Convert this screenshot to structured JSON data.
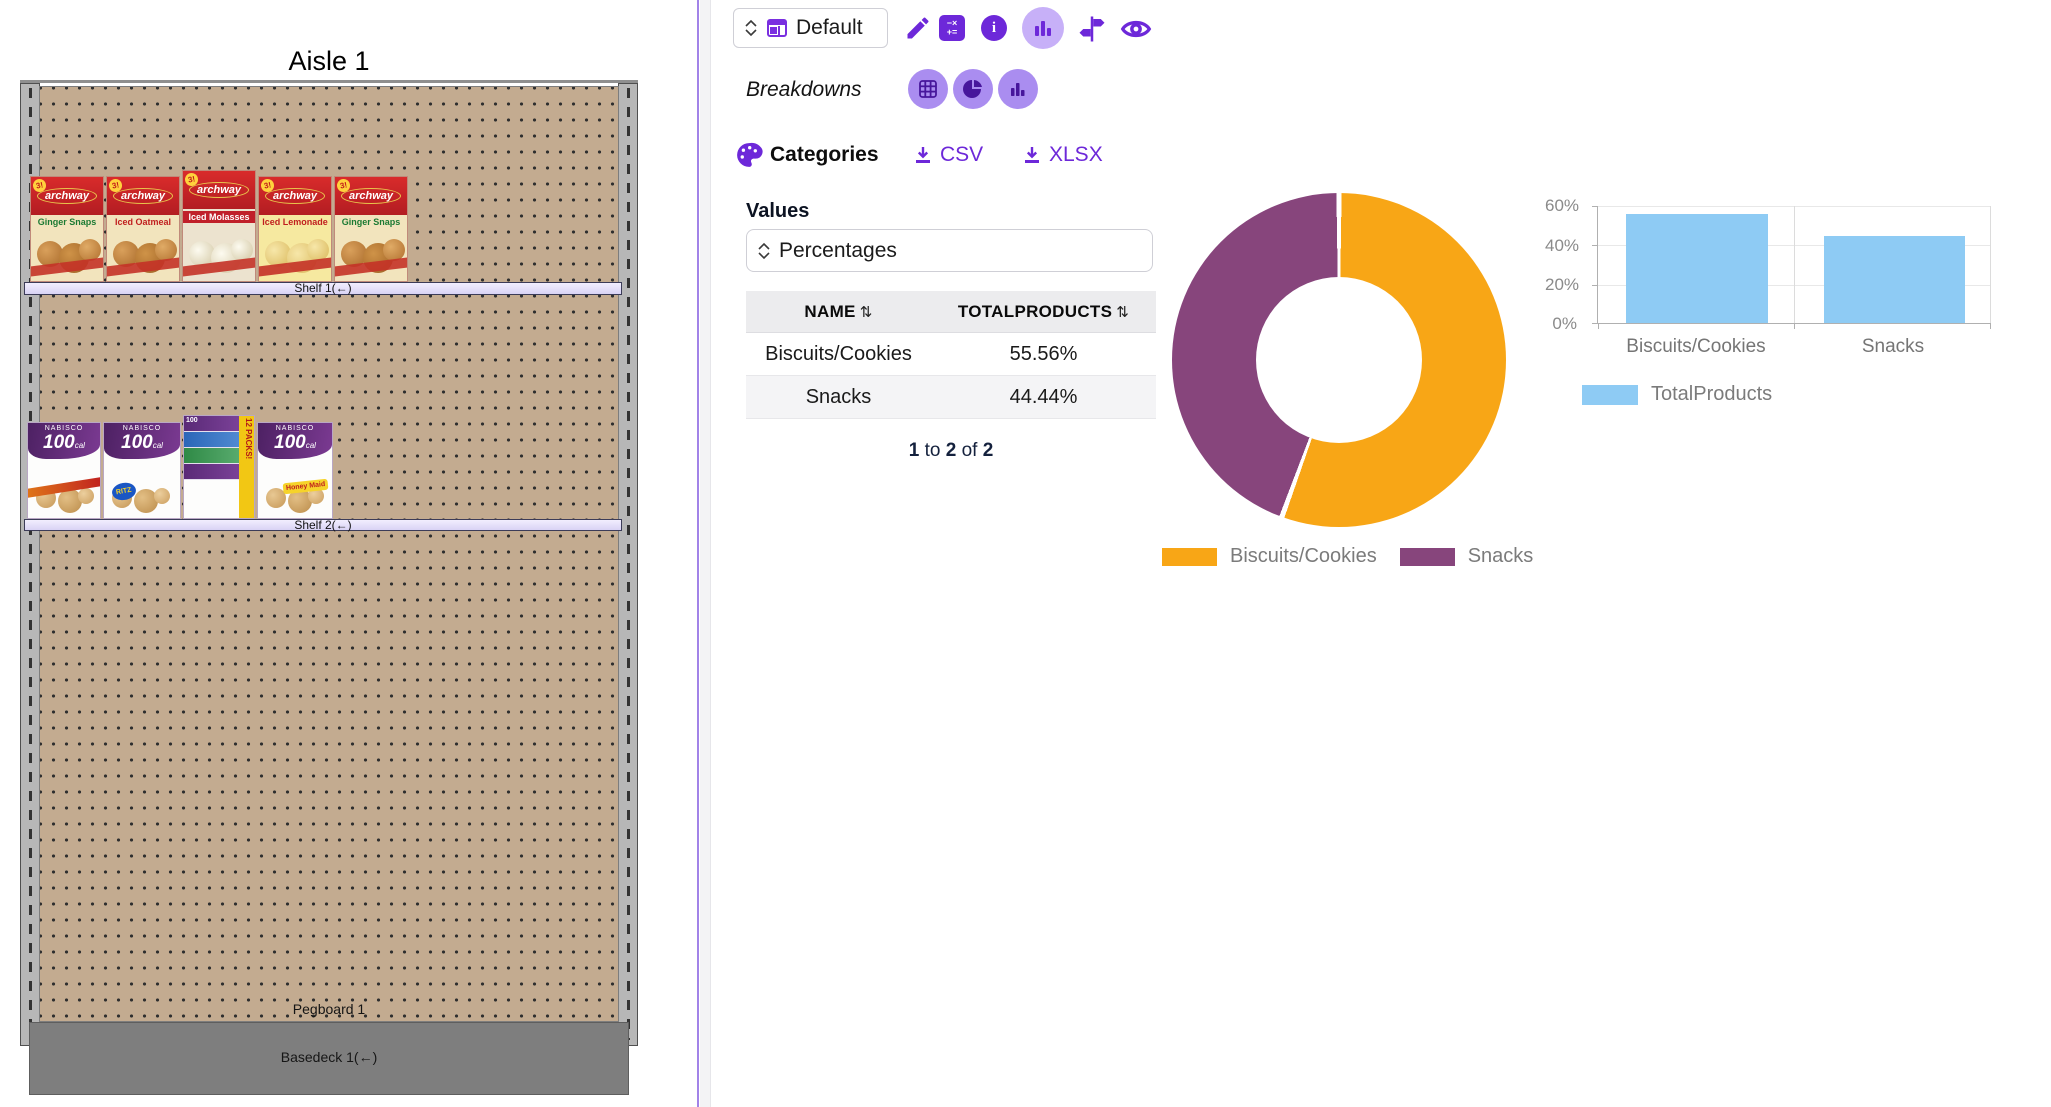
{
  "planogram": {
    "title": "Aisle 1",
    "shelf1_label": "Shelf 1(←)",
    "shelf2_label": "Shelf 2(←)",
    "pegboard_label": "Pegboard 1",
    "basedeck_label": "Basedeck 1(←)",
    "shelf1_products": [
      {
        "brand": "archway",
        "name": "Ginger Snaps",
        "badge": "3!"
      },
      {
        "brand": "archway",
        "name": "Iced Oatmeal",
        "badge": "3!"
      },
      {
        "brand": "archway",
        "name": "Iced Molasses",
        "badge": "3!"
      },
      {
        "brand": "archway",
        "name": "Iced Lemonade",
        "badge": "3!"
      },
      {
        "brand": "archway",
        "name": "Ginger Snaps",
        "badge": "3!"
      }
    ],
    "shelf2_products": [
      {
        "brand": "NABISCO",
        "big": "100",
        "small": "cal"
      },
      {
        "brand": "NABISCO",
        "big": "100",
        "small": "cal",
        "sub": "RITZ"
      },
      {
        "brand": "NABISCO",
        "big": "100",
        "small": "cal",
        "sub": "12 PACKS!"
      },
      {
        "brand": "NABISCO",
        "big": "100",
        "small": "cal",
        "sub": "Honey Maid"
      }
    ]
  },
  "toolbar": {
    "view_selector_label": "Default",
    "icon_names": [
      "edit-pencil",
      "formulas",
      "info",
      "analytics-bars",
      "compare-flags",
      "visibility-eye"
    ]
  },
  "breakdowns": {
    "label": "Breakdowns",
    "buttons": [
      "grid-view",
      "pie-view",
      "bar-view"
    ]
  },
  "categories_bar": {
    "icon": "palette",
    "title": "Categories",
    "csv_label": "CSV",
    "xlsx_label": "XLSX"
  },
  "values_section": {
    "label": "Values",
    "selected_value": "Percentages"
  },
  "table": {
    "columns": [
      "NAME",
      "TOTALPRODUCTS"
    ],
    "sort_icon": "⇅",
    "rows": [
      {
        "name": "Biscuits/Cookies",
        "value": "55.56%"
      },
      {
        "name": "Snacks",
        "value": "44.44%"
      }
    ],
    "pagination_parts": [
      "1",
      "to",
      "2",
      "of",
      "2"
    ]
  },
  "chart_data": [
    {
      "type": "pie",
      "subtype": "donut",
      "labels": [
        "Biscuits/Cookies",
        "Snacks"
      ],
      "values": [
        55.56,
        44.44
      ],
      "colors": [
        "#f8a616",
        "#87457c"
      ],
      "unit": "%",
      "legend_position": "bottom"
    },
    {
      "type": "bar",
      "categories": [
        "Biscuits/Cookies",
        "Snacks"
      ],
      "series": [
        {
          "name": "TotalProducts",
          "values": [
            55.56,
            44.44
          ]
        }
      ],
      "color": "#8ecbf4",
      "ylim": [
        0,
        60
      ],
      "ytick_labels": [
        "60%",
        "40%",
        "20%",
        "0%"
      ],
      "unit": "%",
      "grid": true,
      "legend_position": "bottom"
    }
  ]
}
